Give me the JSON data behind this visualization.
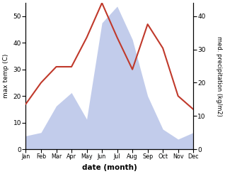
{
  "months": [
    "Jan",
    "Feb",
    "Mar",
    "Apr",
    "May",
    "Jun",
    "Jul",
    "Aug",
    "Sep",
    "Oct",
    "Nov",
    "Dec"
  ],
  "temperature": [
    17,
    25,
    31,
    31,
    42,
    55,
    42,
    30,
    47,
    38,
    20,
    15
  ],
  "precipitation": [
    4,
    5,
    13,
    17,
    9,
    38,
    43,
    33,
    16,
    6,
    3,
    5
  ],
  "temp_color": "#c0392b",
  "precip_fill_color": "#b8c4e8",
  "temp_ylim": [
    0,
    55
  ],
  "precip_ylim": [
    0,
    44
  ],
  "temp_yticks": [
    0,
    10,
    20,
    30,
    40,
    50
  ],
  "precip_yticks": [
    0,
    10,
    20,
    30,
    40
  ],
  "ylabel_left": "max temp (C)",
  "ylabel_right": "med. precipitation (kg/m2)",
  "xlabel": "date (month)",
  "figsize": [
    3.18,
    2.45
  ],
  "dpi": 100
}
